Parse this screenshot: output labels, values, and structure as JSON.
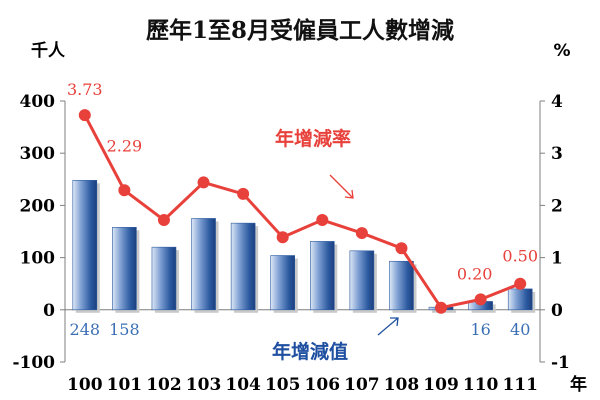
{
  "chart_data": {
    "type": "bar+line",
    "title": "歷年1至8月受僱員工人數增減",
    "left_unit": "千人",
    "right_unit": "%",
    "x_unit": "年",
    "categories": [
      "100",
      "101",
      "102",
      "103",
      "104",
      "105",
      "106",
      "107",
      "108",
      "109",
      "110",
      "111"
    ],
    "series": [
      {
        "name": "年增減值",
        "type": "bar",
        "axis": "left",
        "values": [
          248,
          158,
          120,
          175,
          166,
          104,
          131,
          113,
          93,
          5,
          16,
          40
        ],
        "labels": [
          "248",
          "158",
          "",
          "",
          "",
          "",
          "",
          "",
          "",
          "",
          "16",
          "40"
        ]
      },
      {
        "name": "年增減率",
        "type": "line",
        "axis": "right",
        "values": [
          3.73,
          2.29,
          1.72,
          2.44,
          2.22,
          1.39,
          1.72,
          1.47,
          1.18,
          0.04,
          0.2,
          0.5
        ],
        "labels": [
          "3.73",
          "2.29",
          "",
          "",
          "",
          "",
          "",
          "",
          "",
          "",
          "0.20",
          "0.50"
        ]
      }
    ],
    "y_left": {
      "min": -100,
      "max": 400,
      "ticks": [
        "-100",
        "0",
        "100",
        "200",
        "300",
        "400"
      ]
    },
    "y_right": {
      "min": -1,
      "max": 4,
      "ticks": [
        "-1",
        "0",
        "1",
        "2",
        "3",
        "4"
      ]
    },
    "colors": {
      "bar": "#2c5aa0",
      "line": "#e8403a",
      "rate_annotation": "#e8403a",
      "value_annotation": "#1f4fa0"
    }
  }
}
